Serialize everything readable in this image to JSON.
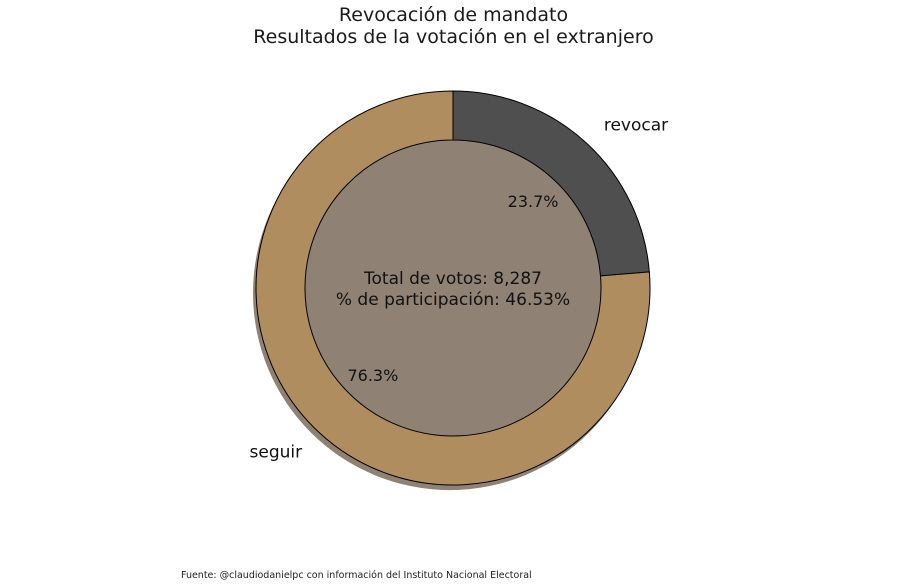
{
  "chart_data": {
    "type": "pie",
    "variant": "donut",
    "title": "Revocación de mandato",
    "subtitle": "Resultados de la votación en el extranjero",
    "slices": [
      {
        "label": "revocar",
        "value": 23.7,
        "value_label": "23.7%",
        "color": "#4f4f4f"
      },
      {
        "label": "seguir",
        "value": 76.3,
        "value_label": "76.3%",
        "color": "#b08d5e"
      }
    ],
    "center_text": [
      "Total de votos: 8,287",
      "% de participación: 46.53%"
    ],
    "shadow_color": "#8f8274",
    "legend": "none"
  },
  "footer": "Fuente: @claudiodanielpc con información del Instituto Nacional Electoral"
}
